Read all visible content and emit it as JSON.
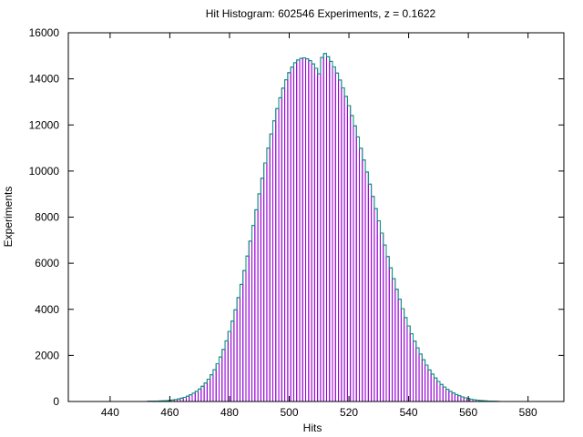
{
  "chart_data": {
    "type": "bar",
    "title": "Hit Histogram: 602546 Experiments, z = 0.1622",
    "xlabel": "Hits",
    "ylabel": "Experiments",
    "xlim": [
      426,
      592
    ],
    "ylim": [
      0,
      16000
    ],
    "xticks": [
      "440",
      "460",
      "480",
      "500",
      "520",
      "540",
      "560",
      "580"
    ],
    "yticks": [
      "0",
      "2000",
      "4000",
      "6000",
      "8000",
      "10000",
      "12000",
      "14000",
      "16000"
    ],
    "grid": false,
    "legend": "none",
    "bar_color": "#9400d3",
    "outline_color": "#009e73",
    "x": [
      453,
      454,
      455,
      456,
      457,
      458,
      459,
      460,
      461,
      462,
      463,
      464,
      465,
      466,
      467,
      468,
      469,
      470,
      471,
      472,
      473,
      474,
      475,
      476,
      477,
      478,
      479,
      480,
      481,
      482,
      483,
      484,
      485,
      486,
      487,
      488,
      489,
      490,
      491,
      492,
      493,
      494,
      495,
      496,
      497,
      498,
      499,
      500,
      501,
      502,
      503,
      504,
      505,
      506,
      507,
      508,
      509,
      510,
      511,
      512,
      513,
      514,
      515,
      516,
      517,
      518,
      519,
      520,
      521,
      522,
      523,
      524,
      525,
      526,
      527,
      528,
      529,
      530,
      531,
      532,
      533,
      534,
      535,
      536,
      537,
      538,
      539,
      540,
      541,
      542,
      543,
      544,
      545,
      546,
      547,
      548,
      549,
      550,
      551,
      552,
      553,
      554,
      555,
      556,
      557,
      558,
      559,
      560,
      561,
      562,
      563,
      564,
      565,
      566,
      567,
      568,
      569,
      570
    ],
    "values": [
      10,
      12,
      15,
      20,
      25,
      30,
      38,
      50,
      65,
      85,
      110,
      145,
      180,
      230,
      290,
      360,
      440,
      540,
      660,
      800,
      970,
      1160,
      1380,
      1640,
      1930,
      2260,
      2630,
      3040,
      3490,
      3980,
      4510,
      5080,
      5680,
      6310,
      6960,
      7640,
      8320,
      9010,
      9690,
      10350,
      11000,
      11610,
      12180,
      12710,
      13180,
      13600,
      13960,
      14270,
      14510,
      14700,
      14820,
      14890,
      14910,
      14870,
      14790,
      14650,
      14460,
      14220,
      14930,
      15100,
      14960,
      14760,
      14520,
      14250,
      13950,
      13610,
      13240,
      12840,
      12410,
      11960,
      11480,
      10990,
      10480,
      9960,
      9430,
      8900,
      8370,
      7840,
      7310,
      6790,
      6290,
      5800,
      5330,
      4870,
      4440,
      4030,
      3640,
      3280,
      2940,
      2620,
      2330,
      2060,
      1810,
      1580,
      1370,
      1190,
      1020,
      870,
      740,
      630,
      530,
      440,
      370,
      300,
      250,
      200,
      160,
      130,
      100,
      80,
      60,
      45,
      35,
      25,
      18,
      12,
      8,
      5
    ]
  }
}
